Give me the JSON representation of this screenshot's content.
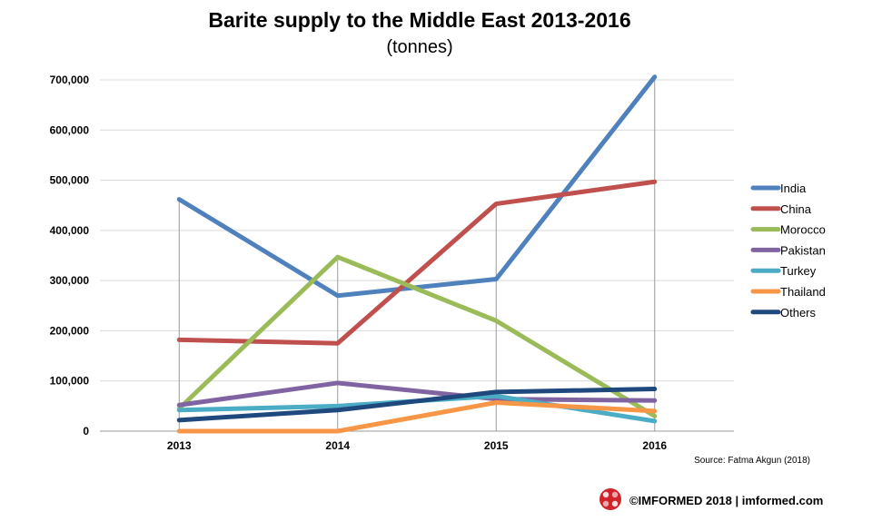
{
  "chart_data": {
    "type": "line",
    "title": "Barite supply to the Middle East 2013-2016",
    "subtitle": "(tonnes)",
    "categories": [
      "2013",
      "2014",
      "2015",
      "2016"
    ],
    "ylim": [
      0,
      700000
    ],
    "yticks": [
      "0",
      "100,000",
      "200,000",
      "300,000",
      "400,000",
      "500,000",
      "600,000",
      "700,000"
    ],
    "grid": true,
    "legend_position": "right",
    "series": [
      {
        "name": "India",
        "color": "#4F81BD",
        "values": [
          462000,
          270000,
          303000,
          706000
        ]
      },
      {
        "name": "China",
        "color": "#C0504D",
        "values": [
          182000,
          175000,
          453000,
          497000
        ]
      },
      {
        "name": "Morocco",
        "color": "#9BBB59",
        "values": [
          45000,
          347000,
          220000,
          30000
        ]
      },
      {
        "name": "Pakistan",
        "color": "#8064A2",
        "values": [
          52000,
          96000,
          64000,
          61000
        ]
      },
      {
        "name": "Turkey",
        "color": "#4BACC6",
        "values": [
          42000,
          50000,
          70000,
          20000
        ]
      },
      {
        "name": "Thailand",
        "color": "#F79646",
        "values": [
          0,
          0,
          57000,
          40000
        ]
      },
      {
        "name": "Others",
        "color": "#1F497D",
        "values": [
          22000,
          42000,
          78000,
          84000
        ]
      }
    ]
  },
  "source": "Source: Fatma Akgun (2018)",
  "footer": {
    "text": "©IMFORMED 2018  | imformed.com",
    "logo_icon": "imformed-logo-icon"
  }
}
